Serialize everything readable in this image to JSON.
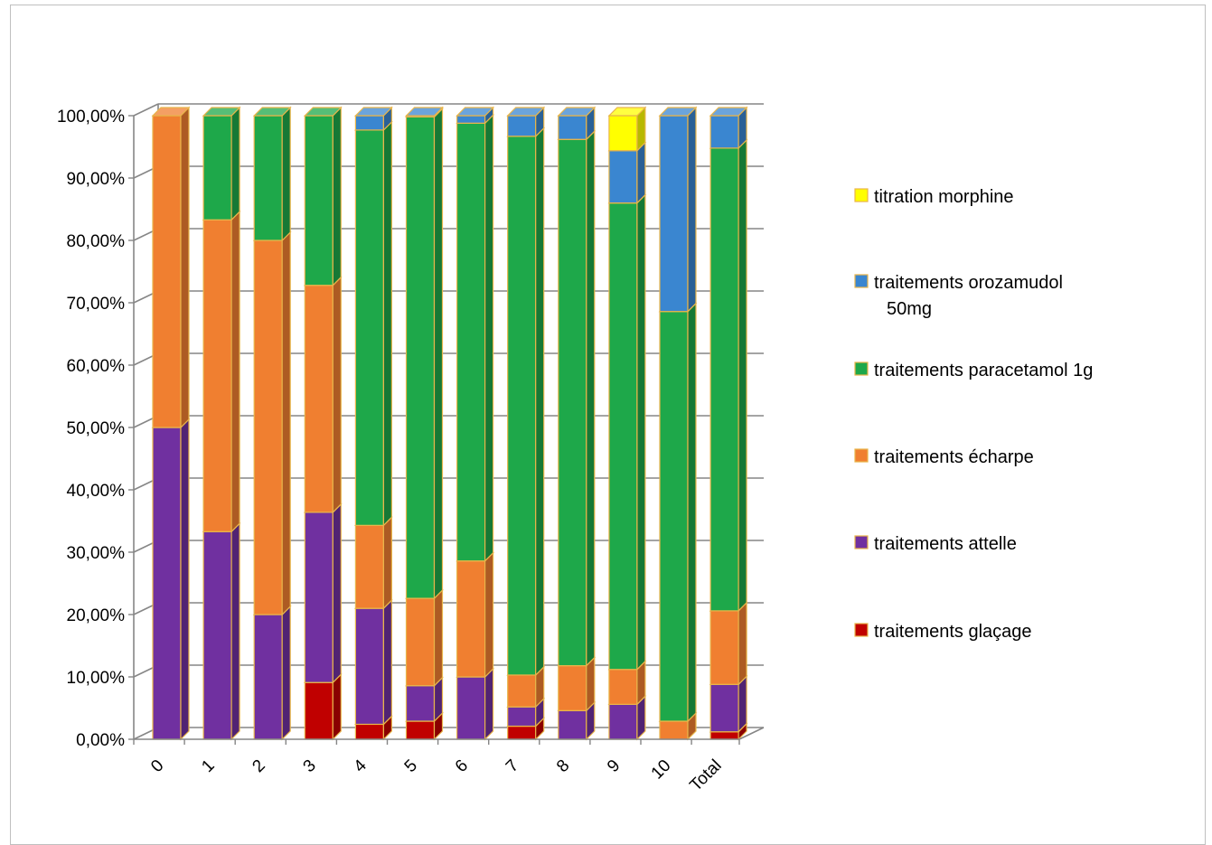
{
  "chart_data": {
    "type": "bar",
    "stacked": true,
    "percent_stacked": true,
    "three_d": true,
    "categories": [
      "0",
      "1",
      "2",
      "3",
      "4",
      "5",
      "6",
      "7",
      "8",
      "9",
      "10",
      "Total"
    ],
    "series": [
      {
        "name": "traitements glaçage",
        "color": "#c00000",
        "values": [
          0,
          0,
          0,
          9.1,
          2.4,
          2.9,
          0,
          2.1,
          0,
          0,
          0,
          1.2
        ]
      },
      {
        "name": "traitements attelle",
        "color": "#7030a0",
        "values": [
          50,
          33.3,
          20,
          27.3,
          18.6,
          5.7,
          10,
          3.1,
          4.6,
          5.6,
          0,
          7.6
        ]
      },
      {
        "name": "traitements écharpe",
        "color": "#f07f30",
        "values": [
          50,
          50,
          60,
          36.4,
          13.3,
          14,
          18.6,
          5.1,
          7.2,
          5.6,
          2.9,
          11.8
        ]
      },
      {
        "name": "traitements paracetamol 1g",
        "color": "#1ea84a",
        "values": [
          0,
          16.7,
          20,
          27.2,
          63.4,
          77.2,
          70.2,
          86.4,
          84.4,
          74.8,
          65.7,
          74.2
        ]
      },
      {
        "name": "traitements orozamudol 50mg",
        "color": "#3a86d0",
        "values": [
          0,
          0,
          0,
          0,
          2.3,
          0.2,
          1.2,
          3.3,
          3.8,
          8.4,
          31.4,
          5.2
        ]
      },
      {
        "name": "titration morphine",
        "color": "#ffff00",
        "values": [
          0,
          0,
          0,
          0,
          0,
          0,
          0,
          0,
          0,
          5.6,
          0,
          0
        ]
      }
    ],
    "y_ticks": [
      "0,00%",
      "10,00%",
      "20,00%",
      "30,00%",
      "40,00%",
      "50,00%",
      "60,00%",
      "70,00%",
      "80,00%",
      "90,00%",
      "100,00%"
    ],
    "ylim": [
      0,
      100
    ],
    "grid": true,
    "legend_position": "right",
    "legend": [
      "titration morphine",
      "traitements orozamudol 50mg",
      "traitements paracetamol 1g",
      "traitements écharpe",
      "traitements attelle",
      "traitements glaçage"
    ]
  }
}
